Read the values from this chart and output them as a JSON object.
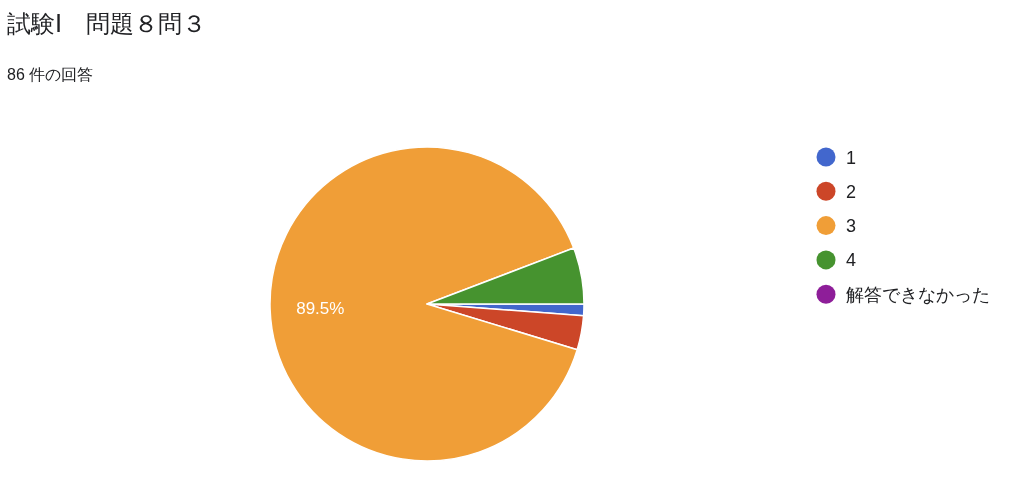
{
  "chart_data": {
    "type": "pie",
    "title": "試験Ⅰ　問題８問３",
    "subtitle": "86 件の回答",
    "categories": [
      "1",
      "2",
      "3",
      "4",
      "解答できなかった"
    ],
    "values": [
      1.2,
      3.5,
      89.5,
      5.8,
      0
    ],
    "value_labels": [
      null,
      null,
      "89.5%",
      null,
      null
    ],
    "colors": [
      "#4267cd",
      "#cc4628",
      "#f09e37",
      "#46932f",
      "#8e1e99"
    ],
    "legend": "right"
  }
}
